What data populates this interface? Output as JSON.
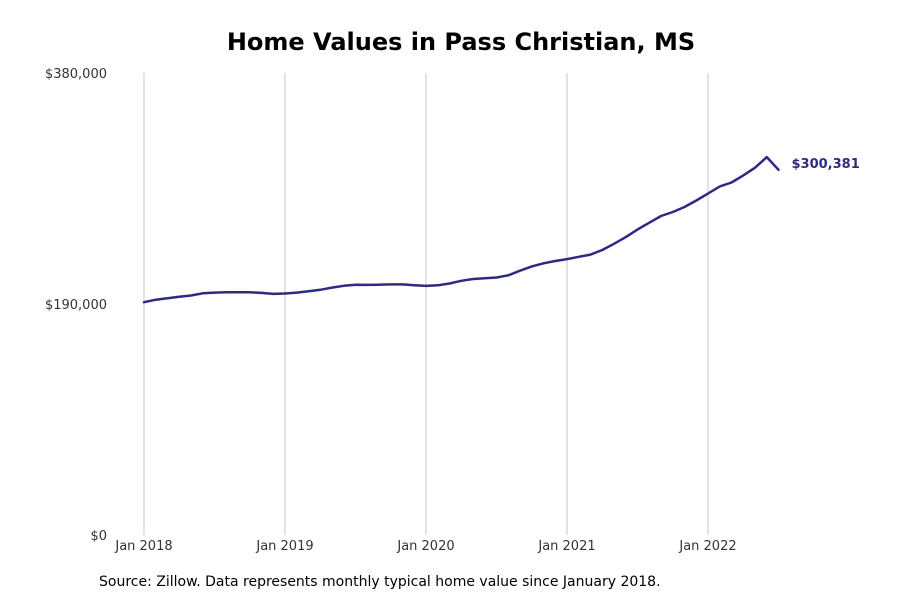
{
  "chart_data": {
    "type": "line",
    "title": "Home Values in Pass Christian, MS",
    "xlabel": "",
    "ylabel": "",
    "x_ticks": [
      "Jan 2018",
      "Jan 2019",
      "Jan 2020",
      "Jan 2021",
      "Jan 2022"
    ],
    "y_ticks": [
      "$0",
      "$190,000",
      "$380,000"
    ],
    "ylim": [
      0,
      380000
    ],
    "grid": "vertical",
    "line_color": "#2e2a84",
    "end_label": "$300,381",
    "series": [
      {
        "x": [
          "2018-01",
          "2018-02",
          "2018-03",
          "2018-04",
          "2018-05",
          "2018-06",
          "2018-07",
          "2018-08",
          "2018-09",
          "2018-10",
          "2018-11",
          "2018-12",
          "2019-01",
          "2019-02",
          "2019-03",
          "2019-04",
          "2019-05",
          "2019-06",
          "2019-07",
          "2019-08",
          "2019-09",
          "2019-10",
          "2019-11",
          "2019-12",
          "2020-01",
          "2020-02",
          "2020-03",
          "2020-04",
          "2020-05",
          "2020-06",
          "2020-07",
          "2020-08",
          "2020-09",
          "2020-10",
          "2020-11",
          "2020-12",
          "2021-01",
          "2021-02",
          "2021-03",
          "2021-04",
          "2021-05",
          "2021-06",
          "2021-07",
          "2021-08",
          "2021-09",
          "2021-10",
          "2021-11",
          "2021-12",
          "2022-01",
          "2022-02",
          "2022-03",
          "2022-04",
          "2022-05",
          "2022-06",
          "2022-07"
        ],
        "values": [
          191500,
          193500,
          194800,
          196000,
          197000,
          198800,
          199400,
          199700,
          199700,
          199600,
          199100,
          198300,
          198600,
          199400,
          200500,
          201700,
          203500,
          205000,
          205800,
          205700,
          205900,
          206100,
          206100,
          205400,
          204900,
          205400,
          206900,
          209100,
          210600,
          211200,
          211800,
          213600,
          217400,
          220900,
          223500,
          225400,
          226900,
          228800,
          230600,
          234400,
          239500,
          245000,
          251300,
          256900,
          262400,
          265700,
          269800,
          275100,
          280800,
          286700,
          289900,
          295800,
          302100,
          310800,
          300381
        ]
      }
    ]
  },
  "source_note": "Source: Zillow. Data represents monthly typical home value since January 2018."
}
